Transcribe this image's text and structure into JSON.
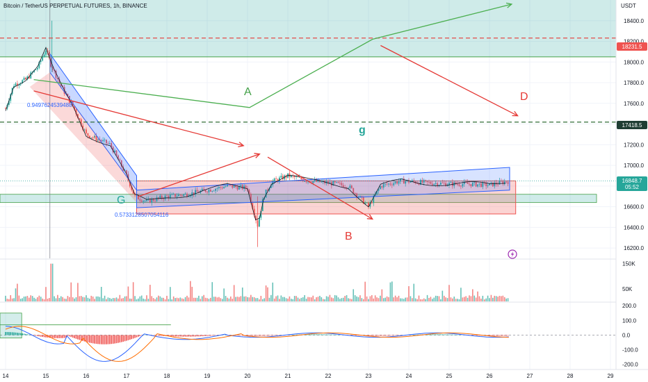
{
  "header": {
    "title": "Bitcoin / TetherUS PERPETUAL FUTURES, 1h, BINANCE"
  },
  "axis": {
    "currency": "USDT"
  },
  "colors": {
    "up": "#26a69a",
    "down": "#ef5350",
    "zone_green": "#26a69a",
    "zone_red": "#ef5350",
    "channel_blue": "#2962ff",
    "arrow_green": "#4caf50",
    "arrow_red": "#e53935",
    "price_tag": "#ef5350"
  },
  "badges": {
    "resistance": "18231.5",
    "level": "17418.5",
    "last_price": "16848.7",
    "countdown": "05:52"
  },
  "annotations": {
    "A": "A",
    "B": "B",
    "D": "D",
    "G": "G",
    "g": "g",
    "fib_top": "0.9497624539488",
    "fib_bottom": "0.5733128507054116"
  },
  "icons": {
    "alert": "lightning-icon"
  },
  "chart_data": [
    {
      "type": "candlestick",
      "title": "Bitcoin / TetherUS PERPETUAL FUTURES, 1h, BINANCE",
      "ylim": [
        16100,
        18600
      ],
      "y_ticks": [
        16200,
        16400,
        16600,
        16800,
        17000,
        17200,
        17400,
        17600,
        17800,
        18000,
        18200,
        18400
      ],
      "x_ticks": [
        "14",
        "15",
        "16",
        "17",
        "18",
        "19",
        "20",
        "21",
        "22",
        "23",
        "24",
        "25",
        "26",
        "27",
        "28",
        "29"
      ],
      "price_path": [
        [
          14.0,
          17550
        ],
        [
          14.2,
          17780
        ],
        [
          14.5,
          17830
        ],
        [
          14.8,
          17950
        ],
        [
          15.0,
          18120
        ],
        [
          15.15,
          17950
        ],
        [
          15.4,
          17750
        ],
        [
          15.7,
          17550
        ],
        [
          16.0,
          17300
        ],
        [
          16.3,
          17250
        ],
        [
          16.6,
          17200
        ],
        [
          16.8,
          17050
        ],
        [
          17.0,
          16900
        ],
        [
          17.2,
          16700
        ],
        [
          17.5,
          16650
        ],
        [
          17.8,
          16680
        ],
        [
          18.0,
          16700
        ],
        [
          18.5,
          16720
        ],
        [
          19.0,
          16760
        ],
        [
          19.5,
          16800
        ],
        [
          20.0,
          16780
        ],
        [
          20.25,
          16420
        ],
        [
          20.4,
          16700
        ],
        [
          20.6,
          16840
        ],
        [
          21.0,
          16900
        ],
        [
          21.5,
          16850
        ],
        [
          22.0,
          16830
        ],
        [
          22.5,
          16800
        ],
        [
          23.0,
          16600
        ],
        [
          23.3,
          16800
        ],
        [
          23.8,
          16850
        ],
        [
          24.5,
          16830
        ],
        [
          25.0,
          16820
        ],
        [
          25.5,
          16820
        ],
        [
          26.0,
          16810
        ],
        [
          26.5,
          16850
        ]
      ],
      "horizontal_levels": [
        18231.5,
        17418.5
      ],
      "zones": [
        {
          "from": 18050,
          "to": 18600,
          "color": "green"
        },
        {
          "from": 16640,
          "to": 16720,
          "color": "green"
        },
        {
          "from": 16530,
          "to": 16850,
          "color": "red"
        }
      ]
    },
    {
      "type": "bar",
      "title": "Volume",
      "y_ticks": [
        "150K",
        "50K"
      ],
      "ylim": [
        0,
        160
      ]
    },
    {
      "type": "line",
      "title": "MACD",
      "y_ticks": [
        200.0,
        100.0,
        0.0,
        -100.0,
        -200.0
      ],
      "ylim": [
        -230,
        220
      ]
    }
  ]
}
